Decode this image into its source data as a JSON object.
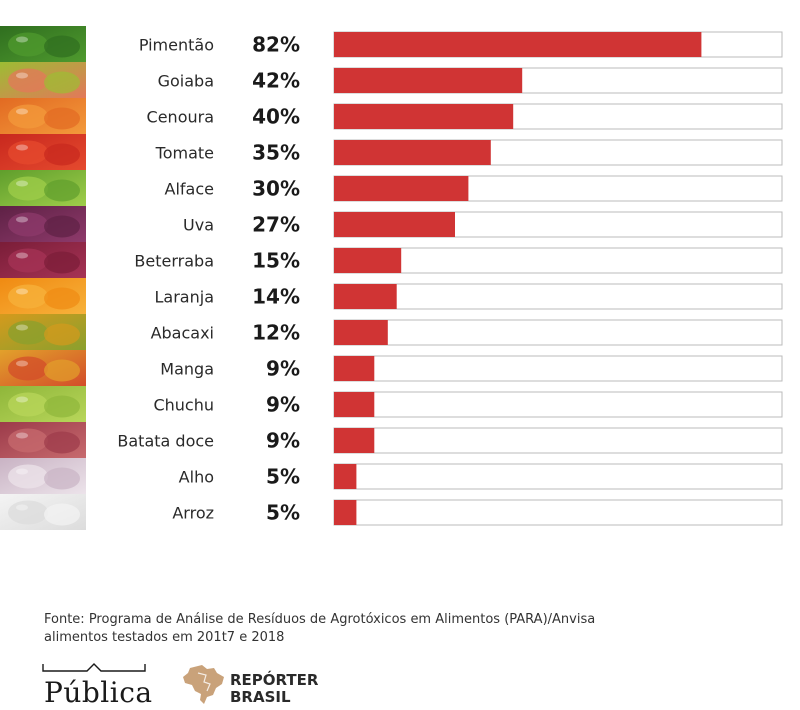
{
  "chart_data": {
    "type": "bar",
    "orientation": "horizontal",
    "categories": [
      "Pimentão",
      "Goiaba",
      "Cenoura",
      "Tomate",
      "Alface",
      "Uva",
      "Beterraba",
      "Laranja",
      "Abacaxi",
      "Manga",
      "Chuchu",
      "Batata doce",
      "Alho",
      "Arroz"
    ],
    "values": [
      82,
      42,
      40,
      35,
      30,
      27,
      15,
      14,
      12,
      9,
      9,
      9,
      5,
      5
    ],
    "value_labels": [
      "82%",
      "42%",
      "40%",
      "35%",
      "30%",
      "27%",
      "15%",
      "14%",
      "12%",
      "9%",
      "9%",
      "9%",
      "5%",
      "5%"
    ],
    "xlim": [
      0,
      100
    ],
    "bar_color": "#d03434",
    "track_color": "#ffffff",
    "track_border": "#bbbbbb",
    "grid": false
  },
  "source_lines": [
    "Fonte: Programa de Análise de Resíduos de Agrotóxicos em Alimentos (PARA)/Anvisa",
    "alimentos testados em 201t7 e 2018"
  ],
  "logos": {
    "publica": "Pública",
    "reporter_line1": "REPÓRTER",
    "reporter_line2": "BRASIL",
    "reporter_color": "#c9a27a"
  },
  "icons": [
    "pepper-icon",
    "guava-icon",
    "carrot-icon",
    "tomato-icon",
    "lettuce-icon",
    "grape-icon",
    "beet-icon",
    "orange-icon",
    "pineapple-icon",
    "mango-icon",
    "chayote-icon",
    "sweet-potato-icon",
    "garlic-icon",
    "rice-icon"
  ]
}
